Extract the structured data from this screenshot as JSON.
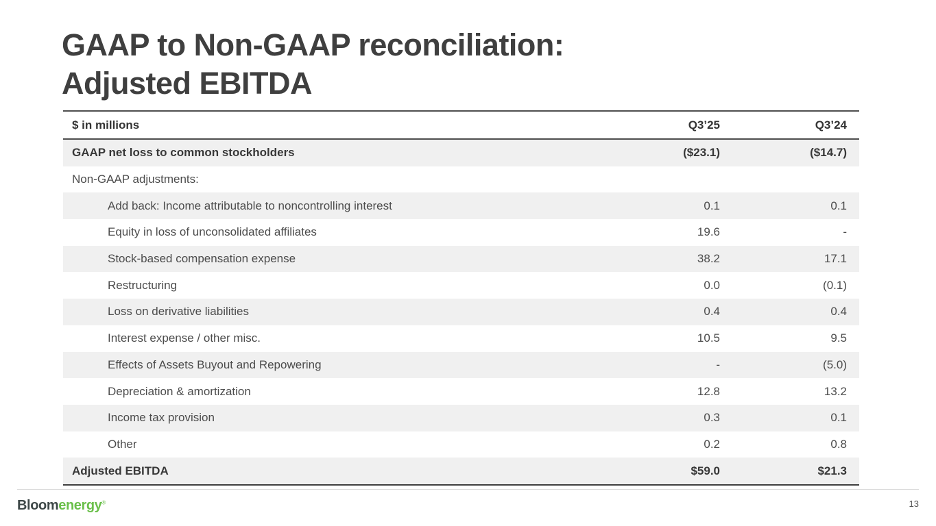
{
  "slide": {
    "title_line1": "GAAP to Non-GAAP reconciliation:",
    "title_line2": "Adjusted EBITDA",
    "page_number": "13",
    "logo": {
      "part1": "Bloom",
      "part2": "energy",
      "trademark": "®"
    }
  },
  "table": {
    "header": {
      "label": "$ in millions",
      "col1": "Q3’25",
      "col2": "Q3’24"
    },
    "rows": [
      {
        "label": "GAAP net loss to common stockholders",
        "col1": "($23.1)",
        "col2": "($14.7)"
      },
      {
        "label": "Non-GAAP adjustments:",
        "col1": "",
        "col2": ""
      },
      {
        "label": "Add back: Income attributable to noncontrolling interest",
        "col1": "0.1",
        "col2": "0.1"
      },
      {
        "label": "Equity in loss of unconsolidated affiliates",
        "col1": "19.6",
        "col2": "-"
      },
      {
        "label": "Stock-based compensation expense",
        "col1": "38.2",
        "col2": "17.1"
      },
      {
        "label": "Restructuring",
        "col1": "0.0",
        "col2": "(0.1)"
      },
      {
        "label": "Loss on derivative liabilities",
        "col1": "0.4",
        "col2": "0.4"
      },
      {
        "label": "Interest expense / other misc.",
        "col1": "10.5",
        "col2": "9.5"
      },
      {
        "label": "Effects of Assets Buyout and Repowering",
        "col1": "-",
        "col2": "(5.0)"
      },
      {
        "label": "Depreciation & amortization",
        "col1": "12.8",
        "col2": "13.2"
      },
      {
        "label": "Income tax provision",
        "col1": "0.3",
        "col2": "0.1"
      },
      {
        "label": "Other",
        "col1": "0.2",
        "col2": "0.8"
      },
      {
        "label": "Adjusted EBITDA",
        "col1": "$59.0",
        "col2": "$21.3"
      }
    ]
  },
  "colors": {
    "brand_green": "#6abf4a",
    "charcoal": "#3f3f3f",
    "row_stripe": "#f0f0f0",
    "table_border": "#4f4f4f",
    "footer_divider": "#d8d8d8"
  }
}
